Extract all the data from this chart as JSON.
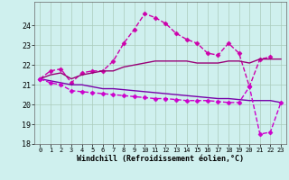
{
  "xlabel": "Windchill (Refroidissement éolien,°C)",
  "background_color": "#cff0ee",
  "grid_color": "#aaccbb",
  "xlim": [
    -0.5,
    23.5
  ],
  "ylim": [
    18,
    25.2
  ],
  "yticks": [
    18,
    19,
    20,
    21,
    22,
    23,
    24
  ],
  "xticks": [
    0,
    1,
    2,
    3,
    4,
    5,
    6,
    7,
    8,
    9,
    10,
    11,
    12,
    13,
    14,
    15,
    16,
    17,
    18,
    19,
    20,
    21,
    22,
    23
  ],
  "lines": [
    {
      "x": [
        0,
        1,
        2,
        3,
        4,
        5,
        6,
        7,
        8,
        9,
        10,
        11,
        12,
        13,
        14,
        15,
        16,
        17,
        18,
        19,
        20,
        21,
        22
      ],
      "y": [
        21.3,
        21.7,
        21.8,
        21.1,
        21.6,
        21.7,
        21.7,
        22.2,
        23.1,
        23.8,
        24.6,
        24.4,
        24.1,
        23.6,
        23.3,
        23.1,
        22.6,
        22.5,
        23.1,
        22.6,
        20.9,
        22.3,
        22.4
      ],
      "color": "#cc00aa",
      "marker": "D",
      "marker_size": 2.5,
      "linewidth": 1.0,
      "linestyle": "--"
    },
    {
      "x": [
        0,
        1,
        2,
        3,
        4,
        5,
        6,
        7,
        8,
        9,
        10,
        11,
        12,
        13,
        14,
        15,
        16,
        17,
        18,
        19,
        20,
        21,
        22,
        23
      ],
      "y": [
        21.3,
        21.5,
        21.6,
        21.3,
        21.5,
        21.6,
        21.7,
        21.7,
        21.9,
        22.0,
        22.1,
        22.2,
        22.2,
        22.2,
        22.2,
        22.1,
        22.1,
        22.1,
        22.2,
        22.2,
        22.1,
        22.3,
        22.3,
        22.3
      ],
      "color": "#990077",
      "marker": null,
      "linewidth": 1.0,
      "linestyle": "-"
    },
    {
      "x": [
        0,
        1,
        2,
        3,
        4,
        5,
        6,
        7,
        8,
        9,
        10,
        11,
        12,
        13,
        14,
        15,
        16,
        17,
        18,
        19,
        20,
        21,
        22,
        23
      ],
      "y": [
        21.3,
        21.2,
        21.1,
        21.0,
        21.0,
        20.9,
        20.8,
        20.8,
        20.75,
        20.7,
        20.65,
        20.6,
        20.55,
        20.5,
        20.45,
        20.4,
        20.35,
        20.3,
        20.3,
        20.25,
        20.2,
        20.2,
        20.2,
        20.1
      ],
      "color": "#7700aa",
      "marker": null,
      "linewidth": 1.0,
      "linestyle": "-"
    },
    {
      "x": [
        0,
        1,
        2,
        3,
        4,
        5,
        6,
        7,
        8,
        9,
        10,
        11,
        12,
        13,
        14,
        15,
        16,
        17,
        18,
        19,
        20,
        21,
        22,
        23
      ],
      "y": [
        21.3,
        21.1,
        21.0,
        20.7,
        20.65,
        20.6,
        20.55,
        20.5,
        20.45,
        20.4,
        20.35,
        20.3,
        20.3,
        20.25,
        20.2,
        20.2,
        20.2,
        20.15,
        20.1,
        20.1,
        20.9,
        18.5,
        18.6,
        20.1
      ],
      "color": "#cc00cc",
      "marker": "D",
      "marker_size": 2.5,
      "linewidth": 1.0,
      "linestyle": "--"
    }
  ]
}
